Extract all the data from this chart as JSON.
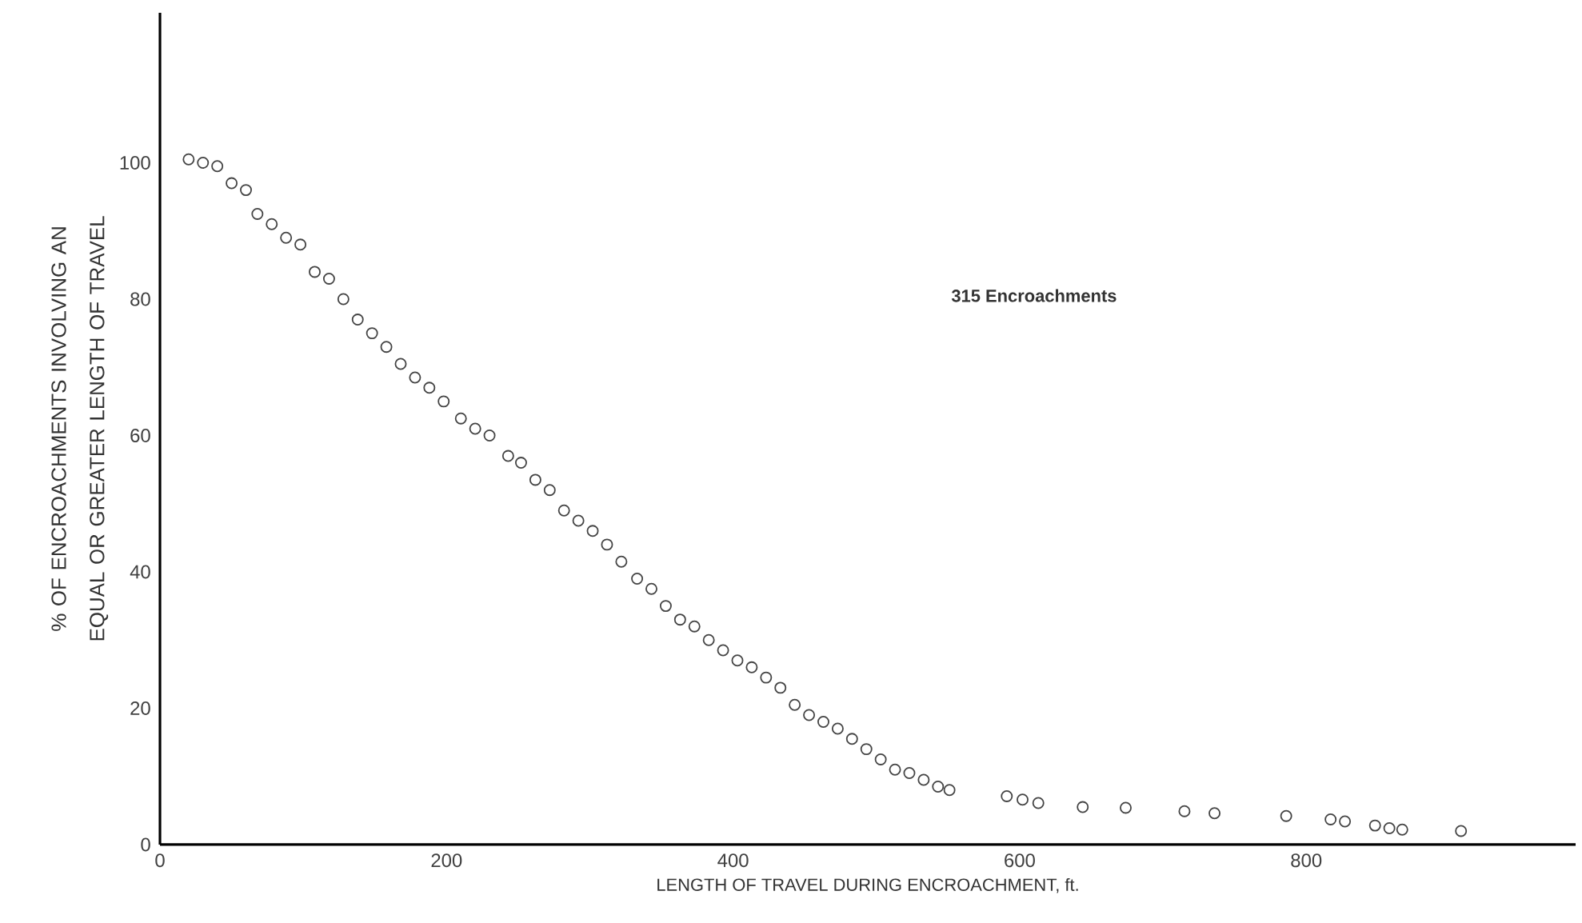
{
  "chart_data": {
    "type": "scatter",
    "xlabel": "LENGTH OF TRAVEL DURING ENCROACHMENT,   ft.",
    "ylabel": "% OF ENCROACHMENTS INVOLVING AN EQUAL OR GREATER LENGTH OF TRAVEL",
    "annotations": [
      "315 Encroachments"
    ],
    "xlim": [
      0,
      988
    ],
    "ylim": [
      0,
      122
    ],
    "xticks": [
      0,
      200,
      400,
      600,
      800
    ],
    "yticks": [
      0,
      20,
      40,
      60,
      80,
      100
    ],
    "marker": "circle",
    "series": [
      {
        "color": "#444444",
        "x": [
          20,
          30,
          40,
          50,
          60,
          68,
          78,
          88,
          98,
          108,
          118,
          128,
          138,
          148,
          158,
          168,
          178,
          188,
          198,
          210,
          220,
          230,
          243,
          252,
          262,
          272,
          282,
          292,
          302,
          312,
          322,
          333,
          343,
          353,
          363,
          373,
          383,
          393,
          403,
          413,
          423,
          433,
          443,
          453,
          463,
          473,
          483,
          493,
          503,
          513,
          523,
          533,
          543,
          551,
          591,
          602,
          613,
          644,
          674,
          715,
          736,
          786,
          817,
          827,
          848,
          858,
          867,
          908
        ],
        "values": [
          100.5,
          100,
          99.5,
          97,
          96,
          92.5,
          91,
          89,
          88,
          84,
          83,
          80,
          77,
          75,
          73,
          70.5,
          68.5,
          67,
          65,
          62.5,
          61,
          60,
          57,
          56,
          53.5,
          52,
          49,
          47.5,
          46,
          44,
          41.5,
          39,
          37.5,
          35,
          33,
          32,
          30,
          28.5,
          27,
          26,
          24.5,
          23,
          20.5,
          19,
          18,
          17,
          15.5,
          14,
          12.5,
          11,
          10.5,
          9.5,
          8.5,
          8,
          7.1,
          6.6,
          6.1,
          5.5,
          5.4,
          4.9,
          4.6,
          4.2,
          3.7,
          3.4,
          2.8,
          2.4,
          2.2,
          2.0
        ]
      }
    ]
  }
}
